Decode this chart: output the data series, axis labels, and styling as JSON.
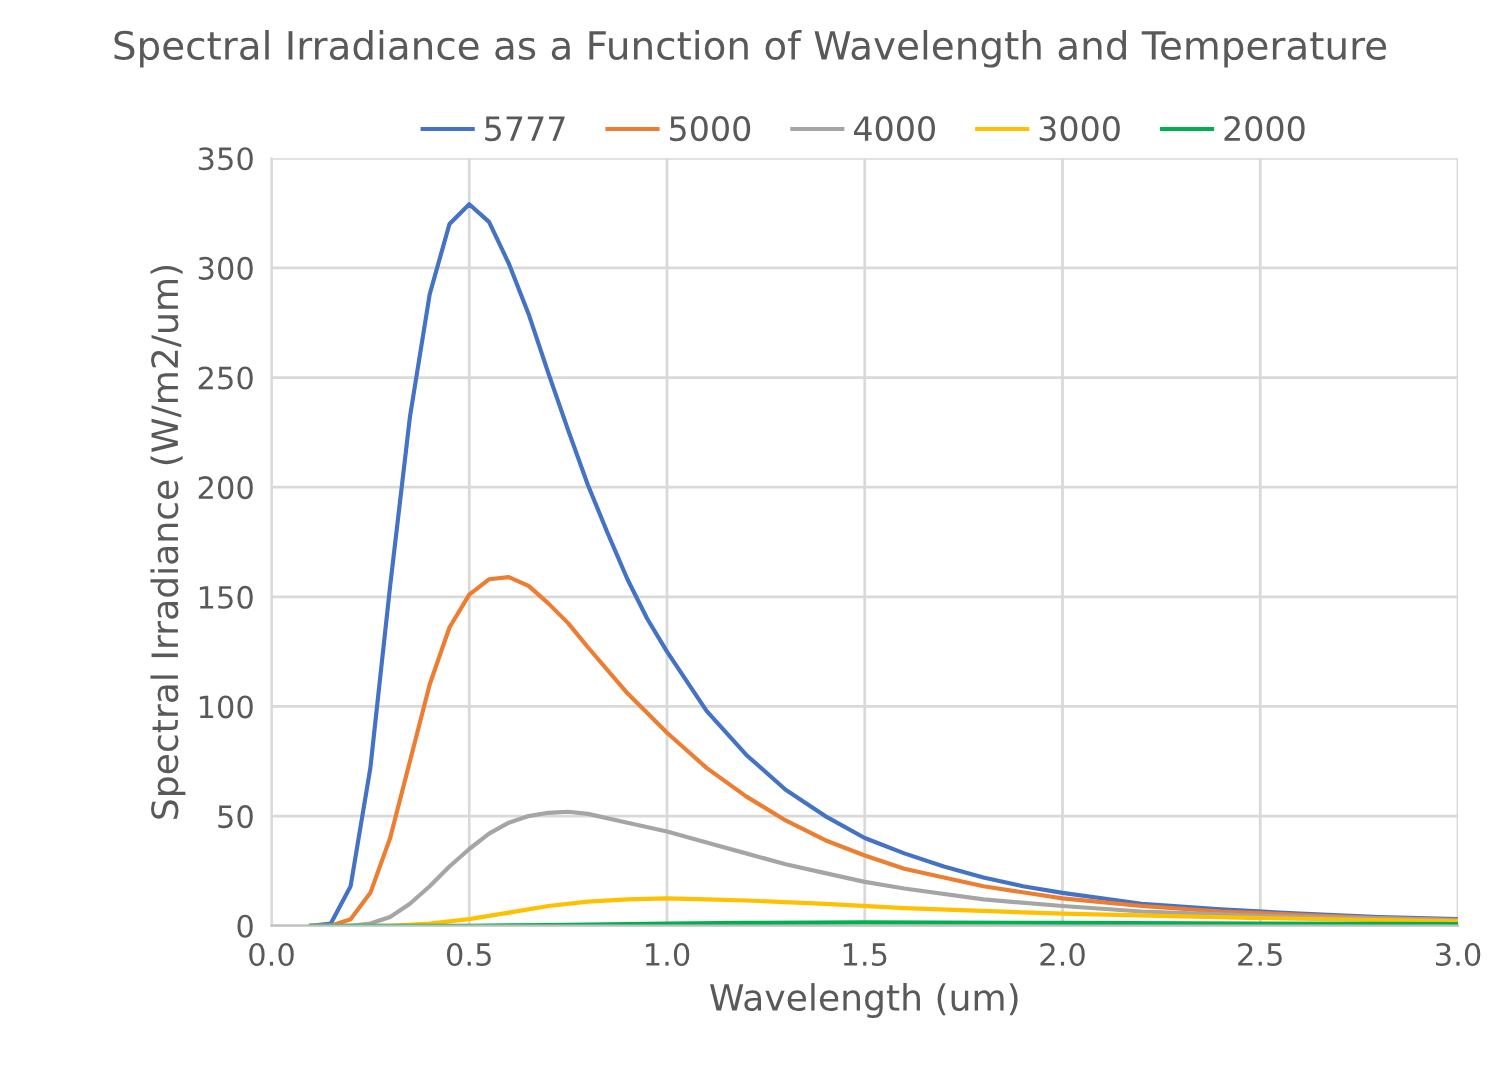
{
  "chart_data": {
    "type": "line",
    "title": "Spectral Irradiance as a Function of Wavelength and Temperature",
    "xlabel": "Wavelength (um)",
    "ylabel": "Spectral Irradiance (W/m2/um)",
    "xlim": [
      0.0,
      3.0
    ],
    "xticks": [
      {
        "value": 0,
        "label": "0.0"
      },
      {
        "value": 0.5,
        "label": "0.5"
      },
      {
        "value": 1,
        "label": "1.0"
      },
      {
        "value": 1.5,
        "label": "1.5"
      },
      {
        "value": 2,
        "label": "2.0"
      },
      {
        "value": 2.5,
        "label": "2.5"
      },
      {
        "value": 3,
        "label": "3.0"
      }
    ],
    "ylim": [
      0,
      350
    ],
    "yticks": [
      0,
      50,
      100,
      150,
      200,
      250,
      300,
      350
    ],
    "grid": true,
    "legend": "top",
    "marker": "none",
    "line_style": "solid",
    "series": [
      {
        "name": "5777",
        "color": "#4472c4",
        "x": [
          0.1,
          0.15,
          0.2,
          0.25,
          0.3,
          0.35,
          0.4,
          0.45,
          0.5,
          0.55,
          0.6,
          0.65,
          0.7,
          0.75,
          0.8,
          0.85,
          0.9,
          0.95,
          1.0,
          1.1,
          1.2,
          1.3,
          1.4,
          1.5,
          1.6,
          1.7,
          1.8,
          1.9,
          2.0,
          2.2,
          2.4,
          2.6,
          2.8,
          3.0
        ],
        "values": [
          0,
          1,
          18,
          72,
          155,
          232,
          288,
          320,
          329,
          321,
          302,
          279,
          252,
          226,
          201,
          179,
          158,
          140,
          125,
          98,
          78,
          62,
          50,
          40,
          33,
          27,
          22,
          18,
          15,
          10,
          7.5,
          5.5,
          4,
          3
        ]
      },
      {
        "name": "5000",
        "color": "#ed7d31",
        "x": [
          0.1,
          0.15,
          0.2,
          0.25,
          0.3,
          0.35,
          0.4,
          0.45,
          0.5,
          0.55,
          0.6,
          0.65,
          0.7,
          0.75,
          0.8,
          0.9,
          1.0,
          1.1,
          1.2,
          1.3,
          1.4,
          1.5,
          1.6,
          1.7,
          1.8,
          2.0,
          2.2,
          2.4,
          2.6,
          2.8,
          3.0
        ],
        "values": [
          0,
          0,
          3,
          15,
          40,
          75,
          110,
          136,
          151,
          158,
          159,
          155,
          147,
          138,
          127,
          106,
          88,
          72,
          59,
          48,
          39,
          32,
          26,
          22,
          18,
          12.5,
          9,
          6.5,
          5,
          3.5,
          2.7
        ]
      },
      {
        "name": "4000",
        "color": "#a5a5a5",
        "x": [
          0.1,
          0.2,
          0.25,
          0.3,
          0.35,
          0.4,
          0.45,
          0.5,
          0.55,
          0.6,
          0.65,
          0.7,
          0.75,
          0.8,
          0.9,
          1.0,
          1.1,
          1.2,
          1.3,
          1.4,
          1.5,
          1.6,
          1.8,
          2.0,
          2.2,
          2.5,
          3.0
        ],
        "values": [
          0,
          0,
          1,
          4,
          10,
          18,
          27,
          35,
          42,
          47,
          50,
          51.5,
          52,
          51,
          47,
          43,
          38,
          33,
          28,
          24,
          20,
          17,
          12,
          9,
          6.5,
          4.5,
          2.5
        ]
      },
      {
        "name": "3000",
        "color": "#ffc000",
        "x": [
          0.1,
          0.3,
          0.4,
          0.5,
          0.6,
          0.7,
          0.8,
          0.9,
          1.0,
          1.1,
          1.2,
          1.4,
          1.6,
          2.0,
          2.5,
          3.0
        ],
        "values": [
          0,
          0,
          1,
          3,
          6,
          9,
          11,
          12,
          12.5,
          12,
          11.5,
          10,
          8,
          5.5,
          3.5,
          2
        ]
      },
      {
        "name": "2000",
        "color": "#00b050",
        "x": [
          0.1,
          0.5,
          0.7,
          1.0,
          1.2,
          1.5,
          2.0,
          2.5,
          3.0
        ],
        "values": [
          0,
          0,
          0.3,
          1,
          1.3,
          1.5,
          1.3,
          1,
          0.8
        ]
      }
    ]
  }
}
